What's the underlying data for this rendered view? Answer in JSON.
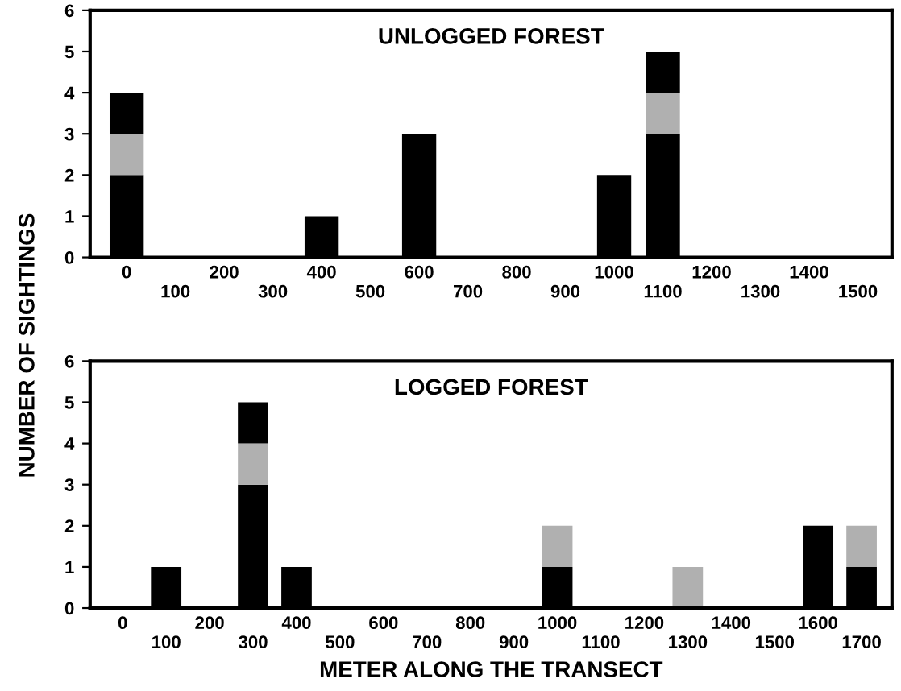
{
  "chart_data": [
    {
      "type": "bar",
      "stacked": true,
      "title": "UNLOGGED FOREST",
      "ylabel": "NUMBER OF SIGHTINGS",
      "categories": [
        "0",
        "100",
        "200",
        "300",
        "400",
        "500",
        "600",
        "700",
        "800",
        "900",
        "1000",
        "1100",
        "1200",
        "1300",
        "1400",
        "1500"
      ],
      "series": [
        {
          "color": "#000000",
          "values": [
            2,
            0,
            0,
            0,
            1,
            0,
            3,
            0,
            0,
            0,
            2,
            3,
            0,
            0,
            0,
            0
          ]
        },
        {
          "color": "#b0b0b0",
          "values": [
            1,
            null,
            null,
            null,
            null,
            null,
            null,
            null,
            null,
            null,
            null,
            1,
            null,
            null,
            null,
            null
          ]
        },
        {
          "color": "#000000",
          "values": [
            1,
            null,
            null,
            null,
            null,
            null,
            null,
            null,
            null,
            null,
            null,
            1,
            null,
            null,
            null,
            null
          ]
        }
      ],
      "ylim": [
        0,
        6
      ],
      "yticks": [
        0,
        1,
        2,
        3,
        4,
        5,
        6
      ],
      "grid": false,
      "legend": false
    },
    {
      "type": "bar",
      "stacked": true,
      "title": "LOGGED FOREST",
      "xlabel": "METER ALONG THE TRANSECT",
      "categories": [
        "0",
        "100",
        "200",
        "300",
        "400",
        "500",
        "600",
        "700",
        "800",
        "900",
        "1000",
        "1100",
        "1200",
        "1300",
        "1400",
        "1500",
        "1600",
        "1700"
      ],
      "series": [
        {
          "color": "#000000",
          "values": [
            0,
            1,
            0,
            3,
            1,
            0,
            0,
            0,
            0,
            0,
            1,
            0,
            0,
            0,
            0,
            0,
            2,
            1
          ]
        },
        {
          "color": "#b0b0b0",
          "values": [
            null,
            null,
            null,
            1,
            null,
            null,
            null,
            null,
            null,
            null,
            1,
            null,
            null,
            1,
            null,
            null,
            null,
            1
          ]
        },
        {
          "color": "#000000",
          "values": [
            null,
            null,
            null,
            1,
            null,
            null,
            null,
            null,
            null,
            null,
            null,
            null,
            null,
            null,
            null,
            null,
            null,
            null
          ]
        }
      ],
      "ylim": [
        0,
        6
      ],
      "yticks": [
        0,
        1,
        2,
        3,
        4,
        5,
        6
      ],
      "grid": false,
      "legend": false
    }
  ]
}
